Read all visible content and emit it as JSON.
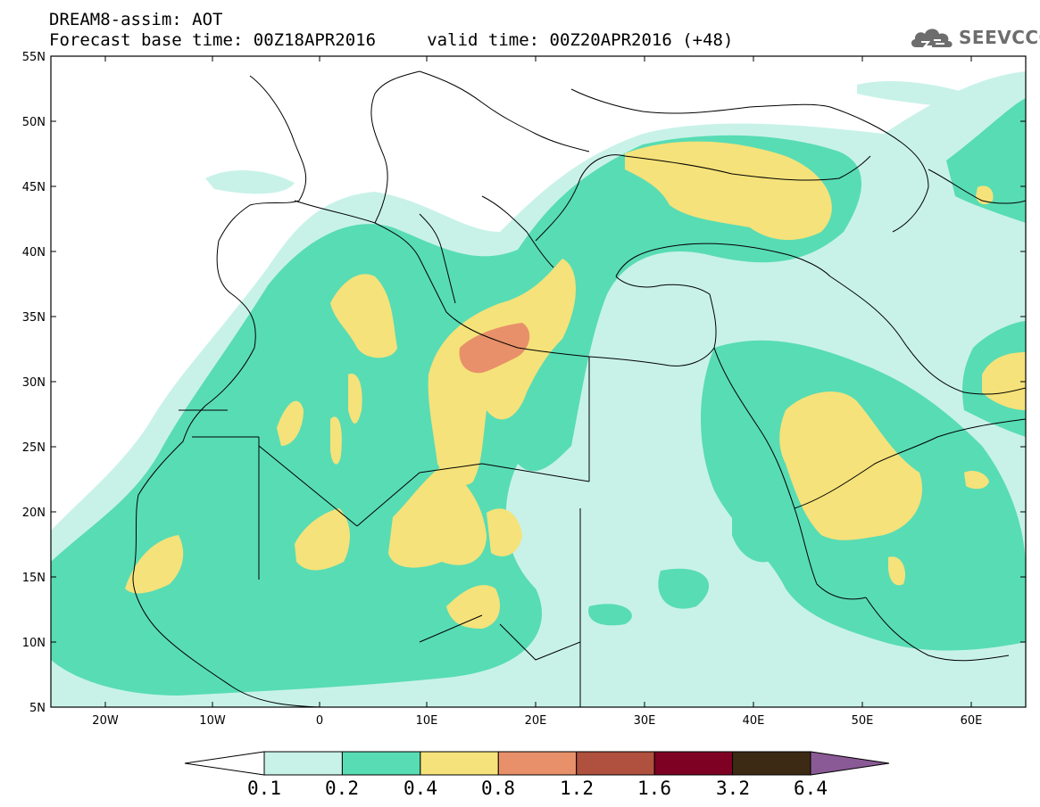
{
  "header": {
    "title_line1": "DREAM8-assim: AOT",
    "title_line2": "Forecast base time: 00Z18APR2016     valid time: 00Z20APR2016 (+48)"
  },
  "logo": {
    "text": "SEEVCCC",
    "icon": "cloud-icon"
  },
  "map": {
    "background": "#ffffff",
    "lat_labels": [
      "55N",
      "50N",
      "45N",
      "40N",
      "35N",
      "30N",
      "25N",
      "20N",
      "15N",
      "10N",
      "5N"
    ],
    "lon_labels": [
      "20W",
      "10W",
      "0",
      "10E",
      "20E",
      "30E",
      "40E",
      "50E",
      "60E"
    ]
  },
  "colorbar": {
    "labels": [
      "0.1",
      "0.2",
      "0.4",
      "0.8",
      "1.2",
      "1.6",
      "3.2",
      "6.4"
    ],
    "colors": [
      "#c8f2e8",
      "#58dcb4",
      "#f5e27a",
      "#e8906a",
      "#b0503e",
      "#7e0022",
      "#3c2a14",
      "#8a5a96"
    ],
    "low_color": "#ffffff"
  },
  "aot_levels_colors": {
    "0.1-0.2": "#c8f2e8",
    "0.2-0.4": "#58dcb4",
    "0.4-0.8": "#f5e27a",
    "0.8-1.2": "#e8906a"
  }
}
